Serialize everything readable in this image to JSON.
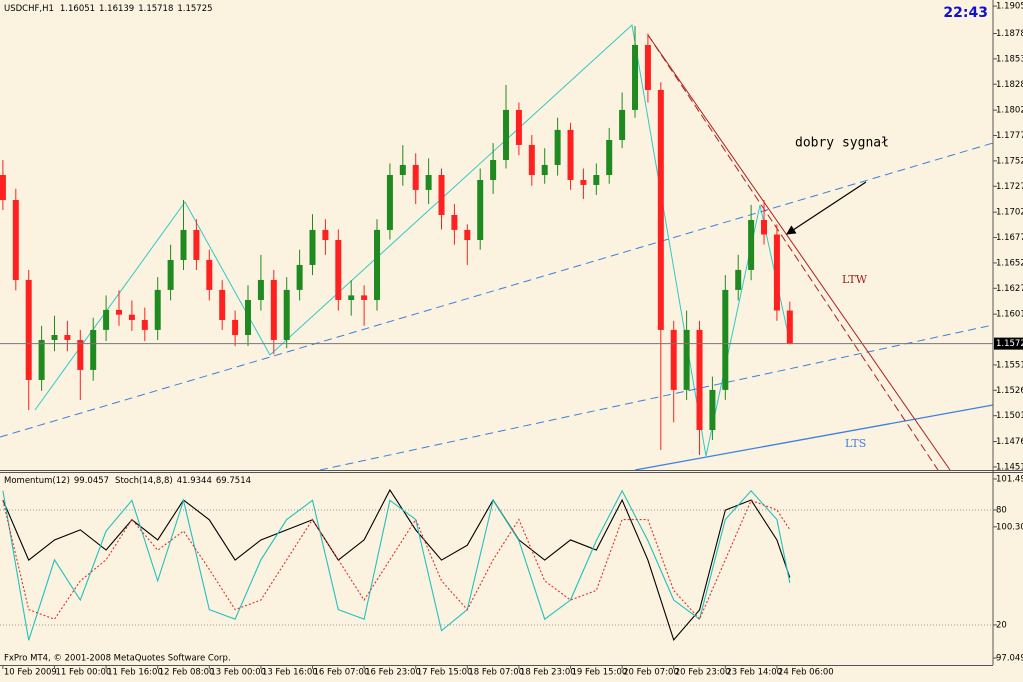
{
  "chart_data": [
    {
      "type": "candlestick",
      "title": "USDCHF,H1",
      "clock": "22:43",
      "annotations": [
        "dobry sygnał",
        "LTW",
        "LTS"
      ],
      "colors": {
        "up": "#1f8a1f",
        "down": "#ff2020",
        "current": "#777777"
      },
      "grid": false,
      "xlim": [
        -0.9,
        307
      ],
      "ylim": [
        1.1448,
        1.1911
      ],
      "yticks": [
        {
          "value": 1.1905,
          "label": "1.19050"
        },
        {
          "value": 1.1878,
          "label": "1.18780"
        },
        {
          "value": 1.1853,
          "label": "1.18530"
        },
        {
          "value": 1.1828,
          "label": "1.18280"
        },
        1.18025,
        1.17775,
        1.17525,
        1.17275,
        {
          "value": 1.1702,
          "label": "1.17020"
        },
        {
          "value": 1.1677,
          "label": "1.16770"
        },
        {
          "value": 1.1652,
          "label": "1.16520"
        },
        {
          "value": 1.1627,
          "label": "1.16270"
        },
        1.16015,
        1.15515,
        1.15265,
        1.15015,
        {
          "value": 1.1476,
          "label": "1.14760"
        },
        {
          "value": 1.1451,
          "label": "1.14510"
        }
      ],
      "x": [
        0,
        4,
        8,
        12,
        16,
        20,
        24,
        28,
        32,
        36,
        40,
        44,
        48,
        52,
        56,
        60,
        64,
        68,
        72,
        76,
        80,
        84,
        88,
        92,
        96,
        100,
        104,
        108,
        112,
        116,
        120,
        124,
        128,
        132,
        136,
        140,
        144,
        148,
        152,
        156,
        160,
        164,
        168,
        172,
        176,
        180,
        184,
        188,
        192,
        196,
        200,
        204,
        208,
        212,
        216,
        220,
        224,
        228,
        232,
        236,
        240,
        244
      ],
      "open": [
        1.17386,
        1.1714,
        1.16352,
        1.15367,
        1.15761,
        1.1581,
        1.15761,
        1.15466,
        1.1586,
        1.16057,
        1.1601,
        1.15958,
        1.1586,
        1.16254,
        1.16549,
        1.16845,
        1.16549,
        1.16254,
        1.15958,
        1.1581,
        1.16155,
        1.16352,
        1.15761,
        1.16254,
        1.165,
        1.16845,
        1.16746,
        1.16155,
        1.162,
        1.16155,
        1.16845,
        1.17386,
        1.17485,
        1.17239,
        1.17386,
        1.16992,
        1.16845,
        1.16746,
        1.17337,
        1.17534,
        1.18027,
        1.17682,
        1.17386,
        1.17485,
        1.1783,
        1.17337,
        1.17288,
        1.17386,
        1.17731,
        1.18027,
        1.18667,
        1.18224,
        1.1586,
        1.15269,
        1.1586,
        1.14874,
        1.15269,
        1.16254,
        1.16451,
        1.16943,
        1.168,
        1.16051
      ],
      "high": [
        1.17534,
        1.1725,
        1.1645,
        1.159,
        1.16,
        1.1595,
        1.1586,
        1.1598,
        1.162,
        1.1625,
        1.1615,
        1.1608,
        1.1638,
        1.167,
        1.1714,
        1.1695,
        1.1665,
        1.1635,
        1.1605,
        1.163,
        1.166,
        1.1645,
        1.1638,
        1.1665,
        1.17,
        1.1695,
        1.1685,
        1.1635,
        1.163,
        1.1695,
        1.175,
        1.1768,
        1.176,
        1.1755,
        1.1745,
        1.171,
        1.169,
        1.1745,
        1.177,
        1.18273,
        1.181,
        1.1778,
        1.1765,
        1.1795,
        1.179,
        1.1745,
        1.175,
        1.1785,
        1.182,
        1.18854,
        1.1878,
        1.183,
        1.1595,
        1.1605,
        1.1595,
        1.154,
        1.164,
        1.166,
        1.17091,
        1.1714,
        1.169,
        1.16139
      ],
      "low": [
        1.17041,
        1.1625,
        1.15071,
        1.1526,
        1.1565,
        1.1565,
        1.1517,
        1.1536,
        1.1575,
        1.159,
        1.1585,
        1.1575,
        1.1576,
        1.1615,
        1.1645,
        1.1645,
        1.1615,
        1.1586,
        1.157,
        1.157,
        1.1605,
        1.1562,
        1.1568,
        1.1615,
        1.164,
        1.166,
        1.1605,
        1.16,
        1.159,
        1.1605,
        1.1675,
        1.1728,
        1.171,
        1.171,
        1.1685,
        1.167,
        1.165,
        1.1665,
        1.172,
        1.1745,
        1.1758,
        1.1728,
        1.173,
        1.1738,
        1.1724,
        1.1715,
        1.1719,
        1.173,
        1.1765,
        1.1795,
        1.181,
        1.14677,
        1.1495,
        1.1517,
        1.14628,
        1.14776,
        1.1517,
        1.1615,
        1.1635,
        1.167,
        1.1595,
        1.15718
      ],
      "close": [
        1.1714,
        1.16352,
        1.15367,
        1.15761,
        1.1581,
        1.15761,
        1.15466,
        1.1586,
        1.16057,
        1.1601,
        1.15958,
        1.1586,
        1.16254,
        1.16549,
        1.16845,
        1.16549,
        1.16254,
        1.15958,
        1.1581,
        1.16155,
        1.16352,
        1.15761,
        1.16254,
        1.165,
        1.16845,
        1.16746,
        1.16155,
        1.162,
        1.16155,
        1.16845,
        1.17386,
        1.17485,
        1.17239,
        1.17386,
        1.16992,
        1.16845,
        1.16746,
        1.17337,
        1.17534,
        1.18027,
        1.17682,
        1.17386,
        1.17485,
        1.1783,
        1.17337,
        1.17288,
        1.17386,
        1.17731,
        1.18027,
        1.18667,
        1.18224,
        1.1586,
        1.15269,
        1.1586,
        1.14874,
        1.15269,
        1.16254,
        1.16451,
        1.16943,
        1.168,
        1.16051,
        1.15725
      ]
    },
    {
      "type": "line",
      "copyright": "FxPro MT4, © 2001-2008 MetaQuotes Software Corp.",
      "grid": false,
      "xlim": [
        -0.9,
        307
      ],
      "ylim": [
        96.876,
        101.666
      ],
      "y2lim": [
        -0.9,
        99.8
      ],
      "yticks": [
        101.492,
        100.3048,
        97.0495
      ],
      "y2ticks": [
        80,
        20
      ],
      "xticks": [
        {
          "value": 0,
          "label": "10 Feb 2009"
        },
        {
          "value": 16,
          "label": "11 Feb 00:00"
        },
        {
          "value": 32,
          "label": "11 Feb 16:00"
        },
        {
          "value": 48,
          "label": "12 Feb 08:00"
        },
        {
          "value": 64,
          "label": "13 Feb 00:00"
        },
        {
          "value": 80,
          "label": "13 Feb 16:00"
        },
        {
          "value": 96,
          "label": "16 Feb 07:00"
        },
        {
          "value": 112,
          "label": "16 Feb 23:00"
        },
        {
          "value": 128,
          "label": "17 Feb 15:00"
        },
        {
          "value": 144,
          "label": "18 Feb 07:00"
        },
        {
          "value": 160,
          "label": "18 Feb 23:00"
        },
        {
          "value": 176,
          "label": "19 Feb 15:00"
        },
        {
          "value": 192,
          "label": "20 Feb 07:00"
        },
        {
          "value": 208,
          "label": "20 Feb 23:00"
        },
        {
          "value": 224,
          "label": "23 Feb 14:00"
        },
        {
          "value": 240,
          "label": "24 Feb 06:00"
        }
      ],
      "x": [
        0,
        8,
        16,
        24,
        32,
        40,
        48,
        56,
        64,
        72,
        80,
        88,
        96,
        104,
        112,
        120,
        128,
        136,
        144,
        152,
        160,
        168,
        176,
        184,
        192,
        200,
        208,
        216,
        224,
        232,
        240,
        244
      ],
      "series": [
        {
          "name": "Momentum(12)",
          "color": "#000000",
          "values": [
            100.97,
            99.48,
            99.98,
            100.23,
            99.73,
            100.48,
            99.98,
            100.97,
            100.48,
            99.48,
            99.98,
            100.23,
            100.48,
            99.48,
            99.98,
            101.22,
            100.23,
            99.48,
            99.85,
            100.97,
            99.98,
            99.48,
            99.98,
            99.73,
            100.97,
            99.48,
            97.5,
            98.24,
            100.72,
            100.97,
            99.98,
            99.0457
          ]
        },
        {
          "name": "Stoch(14,8,8)",
          "color": "#20c0c0",
          "axis": "y2",
          "values": [
            90,
            12,
            54,
            33,
            69,
            85,
            43,
            85,
            28,
            23,
            54,
            75,
            85,
            28,
            23,
            85,
            75,
            17,
            28,
            85,
            64,
            23,
            33,
            64,
            90,
            64,
            33,
            23,
            75,
            90,
            75,
            41.9344
          ]
        },
        {
          "color": "#e03030",
          "axis": "y2",
          "dash": "dotted",
          "values": [
            85,
            28,
            23,
            43,
            54,
            75,
            59,
            69,
            49,
            28,
            33,
            54,
            75,
            54,
            33,
            54,
            75,
            43,
            28,
            54,
            75,
            43,
            33,
            38,
            75,
            75,
            38,
            23,
            54,
            85,
            80,
            69.7514
          ]
        }
      ]
    }
  ]
}
